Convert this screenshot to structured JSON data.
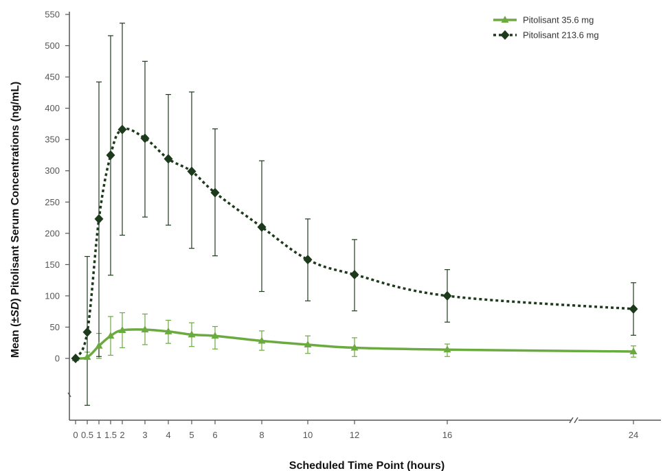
{
  "chart_data": {
    "type": "line",
    "xlabel": "Scheduled Time Point (hours)",
    "ylabel_parts": [
      "Mean (±",
      "SD",
      ") Pitolisant Serum Concentrations (ng/mL)"
    ],
    "ylim": [
      0,
      550
    ],
    "y_ticks": [
      "0",
      "50",
      "100",
      "150",
      "200",
      "250",
      "300",
      "350",
      "400",
      "450",
      "500",
      "550"
    ],
    "x_ticks": [
      "0",
      "0.5",
      "1",
      "1.5",
      "2",
      "3",
      "4",
      "5",
      "6",
      "8",
      "10",
      "12",
      "16",
      "24"
    ],
    "x": [
      0,
      0.5,
      1,
      1.5,
      2,
      3,
      4,
      5,
      6,
      8,
      10,
      12,
      16,
      24
    ],
    "axis_break": "between 16 and 24",
    "legend_position": "top-right",
    "series": [
      {
        "name": "Pitolisant 35.6 mg",
        "color": "#6aaa3e",
        "marker": "triangle",
        "line_style": "solid",
        "values": [
          0,
          2,
          20,
          36,
          45,
          46,
          43,
          38,
          36,
          28,
          22,
          17,
          14,
          11
        ],
        "error_upper": [
          0,
          10,
          40,
          67,
          73,
          71,
          61,
          57,
          51,
          44,
          36,
          33,
          23,
          20
        ],
        "error_lower": [
          0,
          0,
          0,
          5,
          17,
          22,
          24,
          19,
          15,
          13,
          8,
          3,
          3,
          2
        ]
      },
      {
        "name": "Pitolisant 213.6 mg",
        "color": "#1e3a1c",
        "marker": "diamond",
        "line_style": "dotted",
        "values": [
          0,
          42,
          223,
          325,
          366,
          352,
          319,
          299,
          265,
          210,
          158,
          134,
          100,
          79
        ],
        "error_upper": [
          0,
          163,
          442,
          516,
          536,
          475,
          422,
          426,
          367,
          316,
          223,
          190,
          142,
          121
        ],
        "error_lower": [
          0,
          -75,
          3,
          133,
          197,
          226,
          213,
          176,
          164,
          107,
          92,
          76,
          58,
          37
        ]
      }
    ]
  }
}
